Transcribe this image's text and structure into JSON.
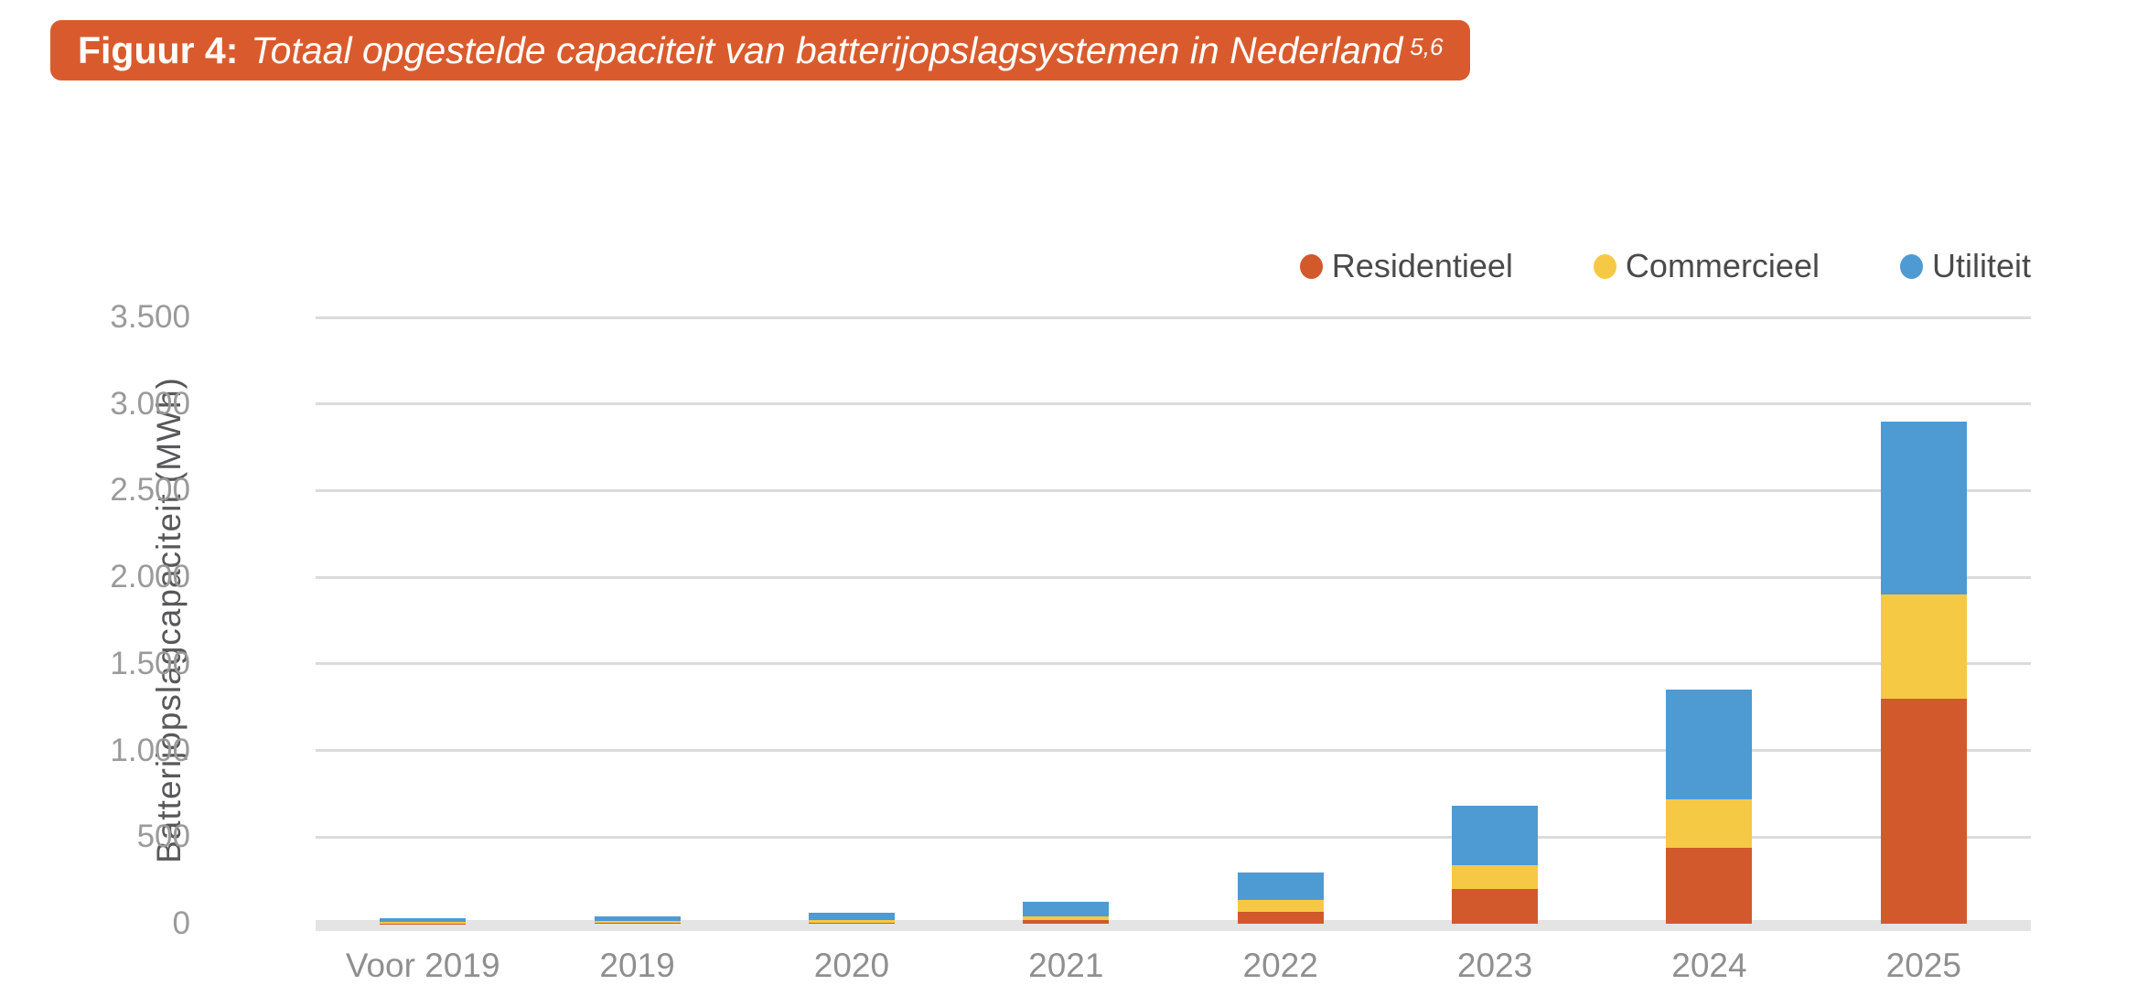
{
  "figure": {
    "label": "Figuur 4:",
    "title": "Totaal opgestelde capaciteit van batterijopslagsystemen in Nederland",
    "superscript": "5,6"
  },
  "colors": {
    "banner": "#D95B2D",
    "residentieel": "#D2592B",
    "commercieel": "#F6C944",
    "utiliteit": "#4E9AD3",
    "gridline": "#DBDBDB",
    "axis_line": "#E4E4E4",
    "tick_text": "#9A9A9A",
    "xlabel_text": "#8F8F8F",
    "legend_text": "#4A4A4A"
  },
  "chart_data": {
    "type": "bar",
    "stacked": true,
    "title": "Totaal opgestelde capaciteit van batterijopslagsystemen in Nederland",
    "xlabel": "",
    "ylabel": "Batterijopslagcapaciteit (MWh)",
    "ylim": [
      0,
      3500
    ],
    "ytick_step": 500,
    "ytick_labels": [
      "0",
      "500",
      "1.000",
      "1.500",
      "2.000",
      "2.500",
      "3.000",
      "3.500"
    ],
    "grid": true,
    "legend_position": "top-right",
    "categories": [
      "Voor 2019",
      "2019",
      "2020",
      "2021",
      "2022",
      "2023",
      "2024",
      "2025"
    ],
    "series": [
      {
        "name": "Residentieel",
        "color": "#D2592B",
        "values": [
          2,
          4,
          5,
          20,
          70,
          200,
          440,
          1300
        ]
      },
      {
        "name": "Commercieel",
        "color": "#F6C944",
        "values": [
          8,
          10,
          15,
          20,
          65,
          140,
          280,
          600
        ]
      },
      {
        "name": "Utiliteit",
        "color": "#4E9AD3",
        "values": [
          20,
          31,
          45,
          85,
          160,
          340,
          630,
          1000
        ]
      }
    ],
    "totals": [
      30,
      45,
      65,
      125,
      295,
      680,
      1350,
      2900
    ]
  }
}
